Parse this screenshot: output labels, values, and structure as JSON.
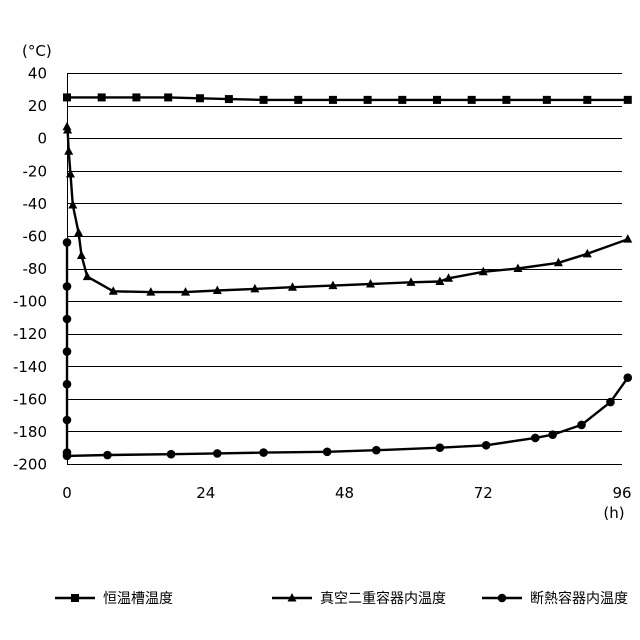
{
  "chart_data": {
    "type": "line",
    "ylabel": "(°C)",
    "xlabel": "(h)",
    "ylim": [
      -200,
      40
    ],
    "xlim": [
      0,
      96
    ],
    "yticks": [
      40,
      20,
      0,
      -20,
      -40,
      -60,
      -80,
      -100,
      -120,
      -140,
      -160,
      -180,
      -200
    ],
    "xticks": [
      0,
      24,
      48,
      72,
      96
    ],
    "grid": true,
    "legend_position": "bottom",
    "series": [
      {
        "name": "恒温槽温度",
        "marker": "square",
        "x": [
          0,
          6,
          12,
          17.5,
          23,
          28,
          34,
          40,
          46,
          52,
          58,
          64,
          70,
          76,
          83,
          90,
          97
        ],
        "y": [
          25,
          25,
          25,
          25,
          24.5,
          24,
          23.5,
          23.5,
          23.5,
          23.5,
          23.5,
          23.5,
          23.5,
          23.5,
          23.5,
          23.5,
          23.5
        ]
      },
      {
        "name": "真空二重容器内温度",
        "marker": "triangle",
        "x": [
          0,
          0.1,
          0.3,
          0.6,
          1,
          2,
          2.5,
          3.5,
          8,
          14.5,
          20.5,
          26,
          32.5,
          39,
          46,
          52.5,
          59.5,
          64.5,
          66,
          72,
          78,
          85,
          90,
          97
        ],
        "y": [
          7,
          5,
          -8,
          -22,
          -41,
          -58,
          -72,
          -85,
          -94,
          -94.5,
          -94.5,
          -93.5,
          -92.5,
          -91.5,
          -90.5,
          -89.5,
          -88.5,
          -88,
          -86,
          -82,
          -80,
          -76.5,
          -71,
          -62
        ]
      },
      {
        "name": "断熱容器内温度",
        "marker": "circle",
        "x": [
          0,
          0,
          0,
          0,
          0,
          0,
          0,
          0,
          7,
          18,
          26,
          34,
          45,
          53.5,
          64.5,
          72.5,
          81,
          84,
          89,
          94,
          97
        ],
        "y": [
          -64,
          -91,
          -111,
          -131,
          -151,
          -173,
          -193,
          -195,
          -194.5,
          -194,
          -193.5,
          -193,
          -192.5,
          -191.5,
          -190,
          -188.5,
          -184,
          -182,
          -176,
          -162,
          -147
        ]
      }
    ]
  }
}
